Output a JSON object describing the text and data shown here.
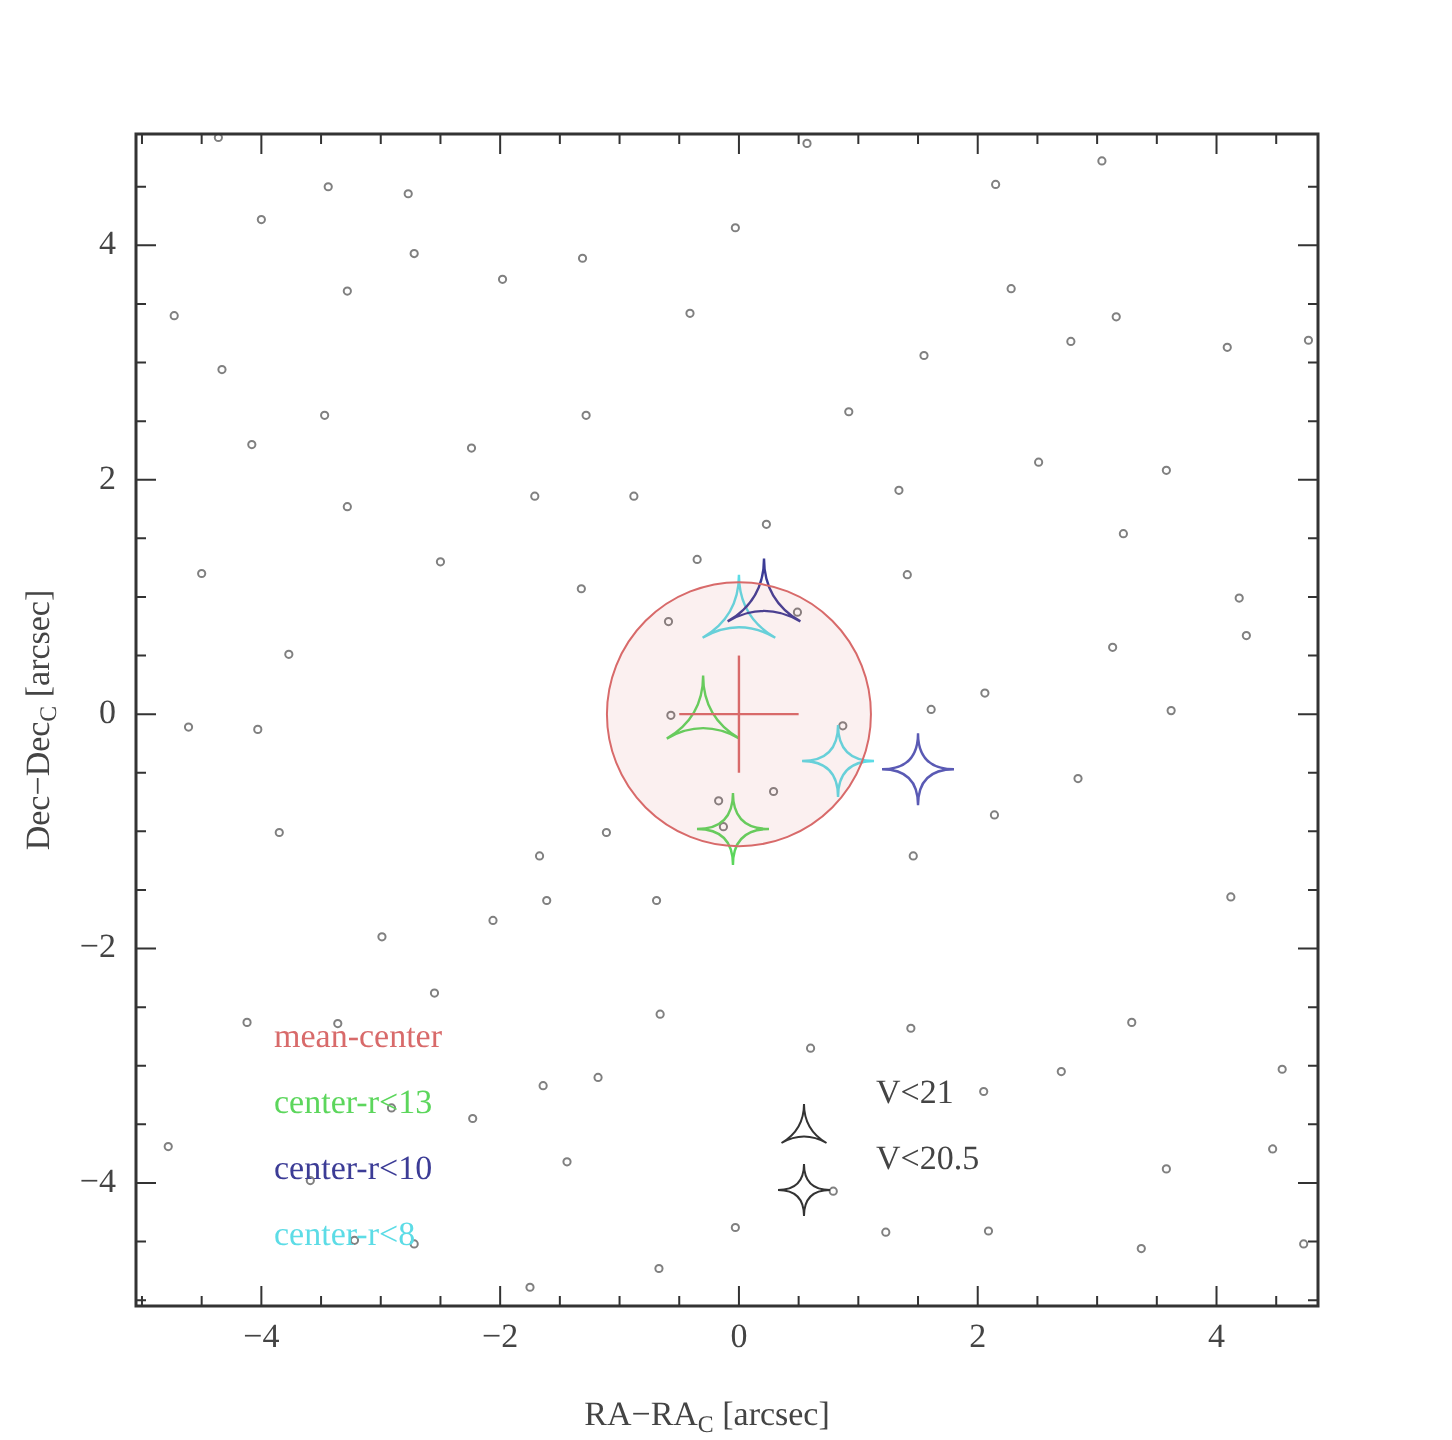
{
  "chart_data": {
    "type": "scatter",
    "xlabel": "RA−RA$_{C}$ [arcsec]",
    "ylabel": "Dec−Dec$_{C}$ [arcsec]",
    "xlim": [
      -5.05,
      4.85
    ],
    "ylim": [
      -5.05,
      4.95
    ],
    "xticks": [
      {
        "value": -5,
        "label": null
      },
      {
        "value": -4.5,
        "label": null
      },
      {
        "value": -4,
        "label": "−4"
      },
      {
        "value": -3.5,
        "label": null
      },
      {
        "value": -3,
        "label": null
      },
      {
        "value": -2.5,
        "label": null
      },
      {
        "value": -2,
        "label": "−2"
      },
      {
        "value": -1.5,
        "label": null
      },
      {
        "value": -1,
        "label": null
      },
      {
        "value": -0.5,
        "label": null
      },
      0,
      {
        "value": 0.5,
        "label": null
      },
      {
        "value": 1,
        "label": null
      },
      {
        "value": 1.5,
        "label": null
      },
      2,
      {
        "value": 2.5,
        "label": null
      },
      {
        "value": 3,
        "label": null
      },
      {
        "value": 3.5,
        "label": null
      },
      4,
      {
        "value": 4.5,
        "label": null
      }
    ],
    "yticks": [
      {
        "value": -5,
        "label": null
      },
      {
        "value": -4.5,
        "label": null
      },
      {
        "value": -4,
        "label": "−4"
      },
      {
        "value": -3.5,
        "label": null
      },
      {
        "value": -3,
        "label": null
      },
      {
        "value": -2.5,
        "label": null
      },
      {
        "value": -2,
        "label": "−2"
      },
      {
        "value": -1.5,
        "label": null
      },
      {
        "value": -1,
        "label": null
      },
      {
        "value": -0.5,
        "label": null
      },
      0,
      {
        "value": 0.5,
        "label": null
      },
      {
        "value": 1,
        "label": null
      },
      {
        "value": 1.5,
        "label": null
      },
      2,
      {
        "value": 2.5,
        "label": null
      },
      {
        "value": 3,
        "label": null
      },
      {
        "value": 3.5,
        "label": null
      },
      4,
      {
        "value": 4.5,
        "label": null
      }
    ],
    "grid": false,
    "legend": "bottom left",
    "annotations": [
      "V<21",
      "V<20.5"
    ],
    "series": [
      {
        "name": "mean-center",
        "color": "#d86a6a",
        "marker": "circle",
        "x": [
          0
        ],
        "values": [
          0
        ],
        "errors": [
          0.5
        ],
        "xerrors": [
          0.5
        ]
      },
      {
        "name": "center-r<13",
        "color": "#5cd65c",
        "marker": "triangle",
        "x": [
          -0.3
        ],
        "values": [
          0.06
        ]
      },
      {
        "color": "#5cd65c",
        "marker": "star",
        "x": [
          -0.05
        ],
        "values": [
          -0.98
        ]
      },
      {
        "name": "center-r<10",
        "color": "#3c3c96",
        "marker": "triangle",
        "x": [
          0.21
        ],
        "values": [
          1.06
        ]
      },
      {
        "color": "#5a5ab4",
        "marker": "star",
        "x": [
          1.5
        ],
        "values": [
          -0.47
        ]
      },
      {
        "name": "center-r<8",
        "color": "#5cdce6",
        "marker": "triangle",
        "x": [
          0
        ],
        "values": [
          0.92
        ]
      },
      {
        "color": "#5cdce6",
        "marker": "star",
        "x": [
          0.83
        ],
        "values": [
          -0.4
        ]
      },
      {
        "color": "#808080",
        "marker": "circle",
        "x": [
          -4.36,
          -3.44,
          -2.77,
          -4.0,
          -2.72,
          -1.98,
          -3.28,
          -4.73,
          -4.33,
          -3.47,
          -4.08,
          -2.24,
          -3.28,
          -2.5,
          -4.5,
          -3.77,
          0.57,
          -0.03,
          -1.31,
          -0.41,
          -1.28,
          0.92,
          -1.71,
          -0.88,
          1.34,
          0.23,
          -0.35,
          -1.32,
          1.41,
          0.49,
          -0.59,
          -0.57,
          3.04,
          2.15,
          2.28,
          3.16,
          2.78,
          1.55,
          4.09,
          4.77,
          2.51,
          3.58,
          3.22,
          4.19,
          4.25,
          3.13,
          2.06,
          1.61,
          3.62,
          -4.61,
          -4.03,
          -3.85,
          -2.99,
          -2.06,
          -2.55,
          -4.12,
          -3.36,
          -4.78,
          -2.91,
          -2.23,
          -3.59,
          -3.22,
          -2.72,
          0.87,
          0.29,
          -0.17,
          -0.13,
          -1.11,
          -1.67,
          1.46,
          -1.61,
          -0.69,
          -0.66,
          1.44,
          0.6,
          -1.18,
          -1.64,
          -1.44,
          0.79,
          -0.03,
          1.23,
          -0.67,
          -1.75,
          2.84,
          2.14,
          4.12,
          3.29,
          2.7,
          2.05,
          4.55,
          4.47,
          3.58,
          2.09,
          3.37,
          4.73
        ],
        "values": [
          4.92,
          4.5,
          4.44,
          4.22,
          3.93,
          3.71,
          3.61,
          3.4,
          2.94,
          2.55,
          2.3,
          2.27,
          1.77,
          1.3,
          1.2,
          0.51,
          4.87,
          4.15,
          3.89,
          3.42,
          2.55,
          2.58,
          1.86,
          1.86,
          1.91,
          1.62,
          1.32,
          1.07,
          1.19,
          0.87,
          0.79,
          -0.01,
          4.72,
          4.52,
          3.63,
          3.39,
          3.18,
          3.06,
          3.13,
          3.19,
          2.15,
          2.08,
          1.54,
          0.99,
          0.67,
          0.57,
          0.18,
          0.04,
          0.03,
          -0.11,
          -0.13,
          -1.01,
          -1.9,
          -1.76,
          -2.38,
          -2.63,
          -2.64,
          -3.69,
          -3.36,
          -3.45,
          -3.98,
          -4.49,
          -4.52,
          -0.1,
          -0.66,
          -0.74,
          -0.96,
          -1.01,
          -1.21,
          -1.21,
          -1.59,
          -1.59,
          -2.56,
          -2.68,
          -2.85,
          -3.1,
          -3.17,
          -3.82,
          -4.07,
          -4.38,
          -4.42,
          -4.73,
          -4.89,
          -0.55,
          -0.86,
          -1.56,
          -2.63,
          -3.05,
          -3.22,
          -3.03,
          -3.71,
          -3.88,
          -4.41,
          -4.56,
          -4.52
        ]
      }
    ]
  }
}
